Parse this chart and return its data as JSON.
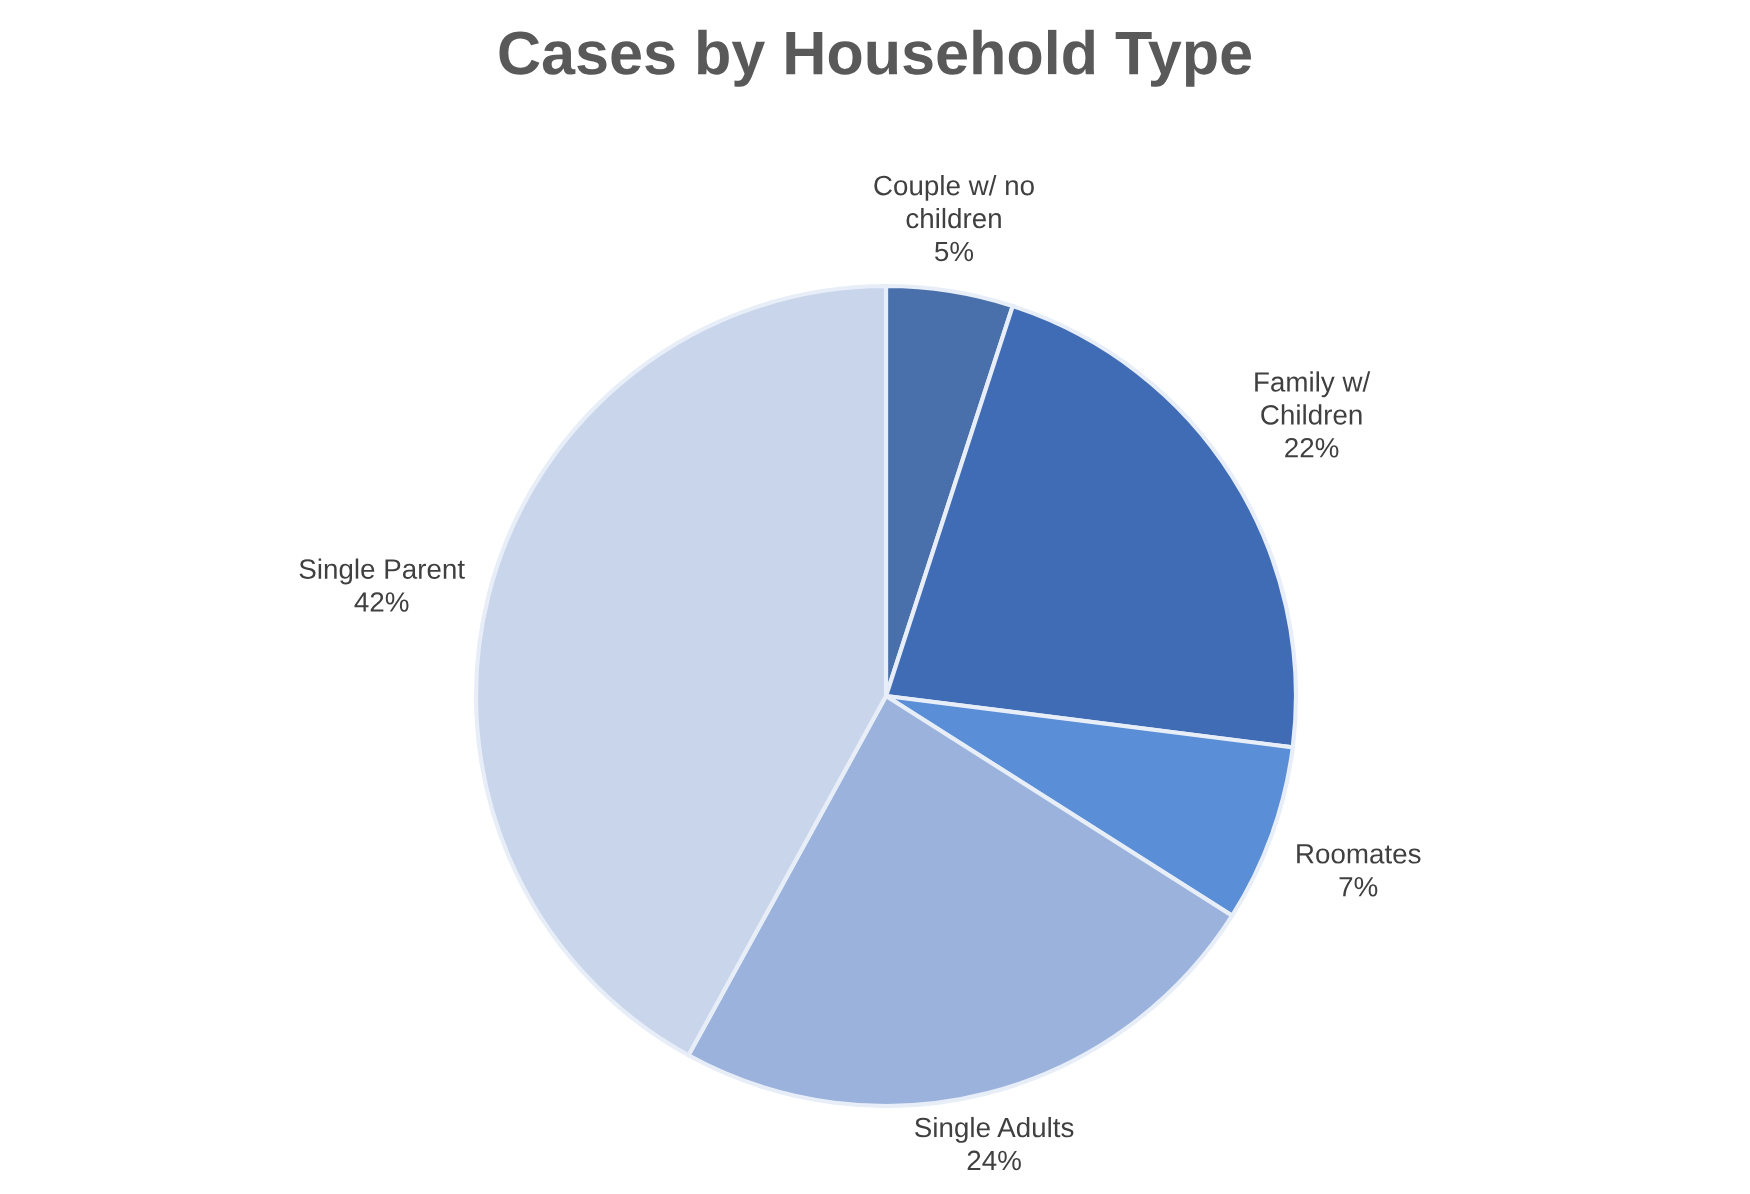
{
  "chart_data": {
    "type": "pie",
    "title": "Cases by Household Type",
    "categories": [
      "Couple w/ no\nchildren",
      "Family w/\nChildren",
      "Roomates",
      "Single Adults",
      "Single Parent"
    ],
    "values": [
      5,
      22,
      7,
      24,
      42
    ],
    "value_labels": [
      "5%",
      "22%",
      "7%",
      "24%",
      "42%"
    ],
    "colors": [
      "#4a70ab",
      "#3f6cb5",
      "#5a8ed6",
      "#9bb3dc",
      "#c8d5eb"
    ],
    "legend": false
  }
}
